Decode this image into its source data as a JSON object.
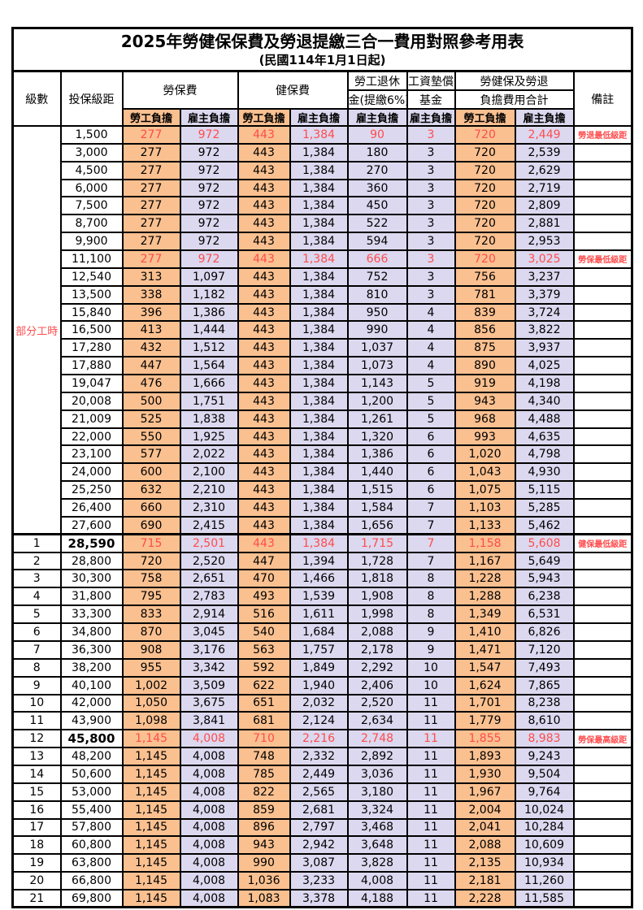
{
  "title": "2025年勞健保保費及勞退提繳三合一費用對照參考用表",
  "subtitle": "(民國114年1月1日起)",
  "colors": {
    "employee_highlight": "#FAC090",
    "employer_highlight": "#DBD8EF",
    "alert_red": "#FF4C4C",
    "border_black": "#000000"
  },
  "table": {
    "headers": {
      "level": "級數",
      "bracket": "投保級距",
      "labor_ins": "勞保費",
      "health_ins": "健保費",
      "pension_line1": "勞工退休",
      "pension_line2": "金(提繳6%)",
      "wage_fund_line1": "工資墊償",
      "wage_fund_line2": "基金",
      "total_line1": "勞健保及勞退",
      "total_line2": "負擔費用合計",
      "remark": "備註",
      "employee": "勞工負擔",
      "employer": "雇主負擔"
    },
    "group_label": "部分工時",
    "rows": [
      {
        "level": "",
        "bracket": "1,500",
        "li_emp": "277",
        "li_er": "972",
        "hi_emp": "443",
        "hi_er": "1,384",
        "pension": "90",
        "fund": "3",
        "tot_emp": "720",
        "tot_er": "2,449",
        "remark": "勞退最低級距",
        "red": true,
        "bold": false
      },
      {
        "level": "",
        "bracket": "3,000",
        "li_emp": "277",
        "li_er": "972",
        "hi_emp": "443",
        "hi_er": "1,384",
        "pension": "180",
        "fund": "3",
        "tot_emp": "720",
        "tot_er": "2,539",
        "remark": "",
        "red": false,
        "bold": false
      },
      {
        "level": "",
        "bracket": "4,500",
        "li_emp": "277",
        "li_er": "972",
        "hi_emp": "443",
        "hi_er": "1,384",
        "pension": "270",
        "fund": "3",
        "tot_emp": "720",
        "tot_er": "2,629",
        "remark": "",
        "red": false,
        "bold": false
      },
      {
        "level": "",
        "bracket": "6,000",
        "li_emp": "277",
        "li_er": "972",
        "hi_emp": "443",
        "hi_er": "1,384",
        "pension": "360",
        "fund": "3",
        "tot_emp": "720",
        "tot_er": "2,719",
        "remark": "",
        "red": false,
        "bold": false
      },
      {
        "level": "",
        "bracket": "7,500",
        "li_emp": "277",
        "li_er": "972",
        "hi_emp": "443",
        "hi_er": "1,384",
        "pension": "450",
        "fund": "3",
        "tot_emp": "720",
        "tot_er": "2,809",
        "remark": "",
        "red": false,
        "bold": false
      },
      {
        "level": "",
        "bracket": "8,700",
        "li_emp": "277",
        "li_er": "972",
        "hi_emp": "443",
        "hi_er": "1,384",
        "pension": "522",
        "fund": "3",
        "tot_emp": "720",
        "tot_er": "2,881",
        "remark": "",
        "red": false,
        "bold": false
      },
      {
        "level": "",
        "bracket": "9,900",
        "li_emp": "277",
        "li_er": "972",
        "hi_emp": "443",
        "hi_er": "1,384",
        "pension": "594",
        "fund": "3",
        "tot_emp": "720",
        "tot_er": "2,953",
        "remark": "",
        "red": false,
        "bold": false
      },
      {
        "level": "",
        "bracket": "11,100",
        "li_emp": "277",
        "li_er": "972",
        "hi_emp": "443",
        "hi_er": "1,384",
        "pension": "666",
        "fund": "3",
        "tot_emp": "720",
        "tot_er": "3,025",
        "remark": "勞保最低級距",
        "red": true,
        "bold": false
      },
      {
        "level": "",
        "bracket": "12,540",
        "li_emp": "313",
        "li_er": "1,097",
        "hi_emp": "443",
        "hi_er": "1,384",
        "pension": "752",
        "fund": "3",
        "tot_emp": "756",
        "tot_er": "3,237",
        "remark": "",
        "red": false,
        "bold": false
      },
      {
        "level": "",
        "bracket": "13,500",
        "li_emp": "338",
        "li_er": "1,182",
        "hi_emp": "443",
        "hi_er": "1,384",
        "pension": "810",
        "fund": "3",
        "tot_emp": "781",
        "tot_er": "3,379",
        "remark": "",
        "red": false,
        "bold": false
      },
      {
        "level": "",
        "bracket": "15,840",
        "li_emp": "396",
        "li_er": "1,386",
        "hi_emp": "443",
        "hi_er": "1,384",
        "pension": "950",
        "fund": "4",
        "tot_emp": "839",
        "tot_er": "3,724",
        "remark": "",
        "red": false,
        "bold": false
      },
      {
        "level": "",
        "bracket": "16,500",
        "li_emp": "413",
        "li_er": "1,444",
        "hi_emp": "443",
        "hi_er": "1,384",
        "pension": "990",
        "fund": "4",
        "tot_emp": "856",
        "tot_er": "3,822",
        "remark": "",
        "red": false,
        "bold": false
      },
      {
        "level": "",
        "bracket": "17,280",
        "li_emp": "432",
        "li_er": "1,512",
        "hi_emp": "443",
        "hi_er": "1,384",
        "pension": "1,037",
        "fund": "4",
        "tot_emp": "875",
        "tot_er": "3,937",
        "remark": "",
        "red": false,
        "bold": false
      },
      {
        "level": "",
        "bracket": "17,880",
        "li_emp": "447",
        "li_er": "1,564",
        "hi_emp": "443",
        "hi_er": "1,384",
        "pension": "1,073",
        "fund": "4",
        "tot_emp": "890",
        "tot_er": "4,025",
        "remark": "",
        "red": false,
        "bold": false
      },
      {
        "level": "",
        "bracket": "19,047",
        "li_emp": "476",
        "li_er": "1,666",
        "hi_emp": "443",
        "hi_er": "1,384",
        "pension": "1,143",
        "fund": "5",
        "tot_emp": "919",
        "tot_er": "4,198",
        "remark": "",
        "red": false,
        "bold": false
      },
      {
        "level": "",
        "bracket": "20,008",
        "li_emp": "500",
        "li_er": "1,751",
        "hi_emp": "443",
        "hi_er": "1,384",
        "pension": "1,200",
        "fund": "5",
        "tot_emp": "943",
        "tot_er": "4,340",
        "remark": "",
        "red": false,
        "bold": false
      },
      {
        "level": "",
        "bracket": "21,009",
        "li_emp": "525",
        "li_er": "1,838",
        "hi_emp": "443",
        "hi_er": "1,384",
        "pension": "1,261",
        "fund": "5",
        "tot_emp": "968",
        "tot_er": "4,488",
        "remark": "",
        "red": false,
        "bold": false
      },
      {
        "level": "",
        "bracket": "22,000",
        "li_emp": "550",
        "li_er": "1,925",
        "hi_emp": "443",
        "hi_er": "1,384",
        "pension": "1,320",
        "fund": "6",
        "tot_emp": "993",
        "tot_er": "4,635",
        "remark": "",
        "red": false,
        "bold": false
      },
      {
        "level": "",
        "bracket": "23,100",
        "li_emp": "577",
        "li_er": "2,022",
        "hi_emp": "443",
        "hi_er": "1,384",
        "pension": "1,386",
        "fund": "6",
        "tot_emp": "1,020",
        "tot_er": "4,798",
        "remark": "",
        "red": false,
        "bold": false
      },
      {
        "level": "",
        "bracket": "24,000",
        "li_emp": "600",
        "li_er": "2,100",
        "hi_emp": "443",
        "hi_er": "1,384",
        "pension": "1,440",
        "fund": "6",
        "tot_emp": "1,043",
        "tot_er": "4,930",
        "remark": "",
        "red": false,
        "bold": false
      },
      {
        "level": "",
        "bracket": "25,250",
        "li_emp": "632",
        "li_er": "2,210",
        "hi_emp": "443",
        "hi_er": "1,384",
        "pension": "1,515",
        "fund": "6",
        "tot_emp": "1,075",
        "tot_er": "5,115",
        "remark": "",
        "red": false,
        "bold": false
      },
      {
        "level": "",
        "bracket": "26,400",
        "li_emp": "660",
        "li_er": "2,310",
        "hi_emp": "443",
        "hi_er": "1,384",
        "pension": "1,584",
        "fund": "7",
        "tot_emp": "1,103",
        "tot_er": "5,285",
        "remark": "",
        "red": false,
        "bold": false
      },
      {
        "level": "",
        "bracket": "27,600",
        "li_emp": "690",
        "li_er": "2,415",
        "hi_emp": "443",
        "hi_er": "1,384",
        "pension": "1,656",
        "fund": "7",
        "tot_emp": "1,133",
        "tot_er": "5,462",
        "remark": "",
        "red": false,
        "bold": false
      },
      {
        "level": "1",
        "bracket": "28,590",
        "li_emp": "715",
        "li_er": "2,501",
        "hi_emp": "443",
        "hi_er": "1,384",
        "pension": "1,715",
        "fund": "7",
        "tot_emp": "1,158",
        "tot_er": "5,608",
        "remark": "健保最低級距",
        "red": true,
        "bold": true
      },
      {
        "level": "2",
        "bracket": "28,800",
        "li_emp": "720",
        "li_er": "2,520",
        "hi_emp": "447",
        "hi_er": "1,394",
        "pension": "1,728",
        "fund": "7",
        "tot_emp": "1,167",
        "tot_er": "5,649",
        "remark": "",
        "red": false,
        "bold": false
      },
      {
        "level": "3",
        "bracket": "30,300",
        "li_emp": "758",
        "li_er": "2,651",
        "hi_emp": "470",
        "hi_er": "1,466",
        "pension": "1,818",
        "fund": "8",
        "tot_emp": "1,228",
        "tot_er": "5,943",
        "remark": "",
        "red": false,
        "bold": false
      },
      {
        "level": "4",
        "bracket": "31,800",
        "li_emp": "795",
        "li_er": "2,783",
        "hi_emp": "493",
        "hi_er": "1,539",
        "pension": "1,908",
        "fund": "8",
        "tot_emp": "1,288",
        "tot_er": "6,238",
        "remark": "",
        "red": false,
        "bold": false
      },
      {
        "level": "5",
        "bracket": "33,300",
        "li_emp": "833",
        "li_er": "2,914",
        "hi_emp": "516",
        "hi_er": "1,611",
        "pension": "1,998",
        "fund": "8",
        "tot_emp": "1,349",
        "tot_er": "6,531",
        "remark": "",
        "red": false,
        "bold": false
      },
      {
        "level": "6",
        "bracket": "34,800",
        "li_emp": "870",
        "li_er": "3,045",
        "hi_emp": "540",
        "hi_er": "1,684",
        "pension": "2,088",
        "fund": "9",
        "tot_emp": "1,410",
        "tot_er": "6,826",
        "remark": "",
        "red": false,
        "bold": false
      },
      {
        "level": "7",
        "bracket": "36,300",
        "li_emp": "908",
        "li_er": "3,176",
        "hi_emp": "563",
        "hi_er": "1,757",
        "pension": "2,178",
        "fund": "9",
        "tot_emp": "1,471",
        "tot_er": "7,120",
        "remark": "",
        "red": false,
        "bold": false
      },
      {
        "level": "8",
        "bracket": "38,200",
        "li_emp": "955",
        "li_er": "3,342",
        "hi_emp": "592",
        "hi_er": "1,849",
        "pension": "2,292",
        "fund": "10",
        "tot_emp": "1,547",
        "tot_er": "7,493",
        "remark": "",
        "red": false,
        "bold": false
      },
      {
        "level": "9",
        "bracket": "40,100",
        "li_emp": "1,002",
        "li_er": "3,509",
        "hi_emp": "622",
        "hi_er": "1,940",
        "pension": "2,406",
        "fund": "10",
        "tot_emp": "1,624",
        "tot_er": "7,865",
        "remark": "",
        "red": false,
        "bold": false
      },
      {
        "level": "10",
        "bracket": "42,000",
        "li_emp": "1,050",
        "li_er": "3,675",
        "hi_emp": "651",
        "hi_er": "2,032",
        "pension": "2,520",
        "fund": "11",
        "tot_emp": "1,701",
        "tot_er": "8,238",
        "remark": "",
        "red": false,
        "bold": false
      },
      {
        "level": "11",
        "bracket": "43,900",
        "li_emp": "1,098",
        "li_er": "3,841",
        "hi_emp": "681",
        "hi_er": "2,124",
        "pension": "2,634",
        "fund": "11",
        "tot_emp": "1,779",
        "tot_er": "8,610",
        "remark": "",
        "red": false,
        "bold": false
      },
      {
        "level": "12",
        "bracket": "45,800",
        "li_emp": "1,145",
        "li_er": "4,008",
        "hi_emp": "710",
        "hi_er": "2,216",
        "pension": "2,748",
        "fund": "11",
        "tot_emp": "1,855",
        "tot_er": "8,983",
        "remark": "勞保最高級距",
        "red": true,
        "bold": true
      },
      {
        "level": "13",
        "bracket": "48,200",
        "li_emp": "1,145",
        "li_er": "4,008",
        "hi_emp": "748",
        "hi_er": "2,332",
        "pension": "2,892",
        "fund": "11",
        "tot_emp": "1,893",
        "tot_er": "9,243",
        "remark": "",
        "red": false,
        "bold": false
      },
      {
        "level": "14",
        "bracket": "50,600",
        "li_emp": "1,145",
        "li_er": "4,008",
        "hi_emp": "785",
        "hi_er": "2,449",
        "pension": "3,036",
        "fund": "11",
        "tot_emp": "1,930",
        "tot_er": "9,504",
        "remark": "",
        "red": false,
        "bold": false
      },
      {
        "level": "15",
        "bracket": "53,000",
        "li_emp": "1,145",
        "li_er": "4,008",
        "hi_emp": "822",
        "hi_er": "2,565",
        "pension": "3,180",
        "fund": "11",
        "tot_emp": "1,967",
        "tot_er": "9,764",
        "remark": "",
        "red": false,
        "bold": false
      },
      {
        "level": "16",
        "bracket": "55,400",
        "li_emp": "1,145",
        "li_er": "4,008",
        "hi_emp": "859",
        "hi_er": "2,681",
        "pension": "3,324",
        "fund": "11",
        "tot_emp": "2,004",
        "tot_er": "10,024",
        "remark": "",
        "red": false,
        "bold": false
      },
      {
        "level": "17",
        "bracket": "57,800",
        "li_emp": "1,145",
        "li_er": "4,008",
        "hi_emp": "896",
        "hi_er": "2,797",
        "pension": "3,468",
        "fund": "11",
        "tot_emp": "2,041",
        "tot_er": "10,284",
        "remark": "",
        "red": false,
        "bold": false
      },
      {
        "level": "18",
        "bracket": "60,800",
        "li_emp": "1,145",
        "li_er": "4,008",
        "hi_emp": "943",
        "hi_er": "2,942",
        "pension": "3,648",
        "fund": "11",
        "tot_emp": "2,088",
        "tot_er": "10,609",
        "remark": "",
        "red": false,
        "bold": false
      },
      {
        "level": "19",
        "bracket": "63,800",
        "li_emp": "1,145",
        "li_er": "4,008",
        "hi_emp": "990",
        "hi_er": "3,087",
        "pension": "3,828",
        "fund": "11",
        "tot_emp": "2,135",
        "tot_er": "10,934",
        "remark": "",
        "red": false,
        "bold": false
      },
      {
        "level": "20",
        "bracket": "66,800",
        "li_emp": "1,145",
        "li_er": "4,008",
        "hi_emp": "1,036",
        "hi_er": "3,233",
        "pension": "4,008",
        "fund": "11",
        "tot_emp": "2,181",
        "tot_er": "11,260",
        "remark": "",
        "red": false,
        "bold": false
      },
      {
        "level": "21",
        "bracket": "69,800",
        "li_emp": "1,145",
        "li_er": "4,008",
        "hi_emp": "1,083",
        "hi_er": "3,378",
        "pension": "4,188",
        "fund": "11",
        "tot_emp": "2,228",
        "tot_er": "11,585",
        "remark": "",
        "red": false,
        "bold": false
      }
    ]
  }
}
